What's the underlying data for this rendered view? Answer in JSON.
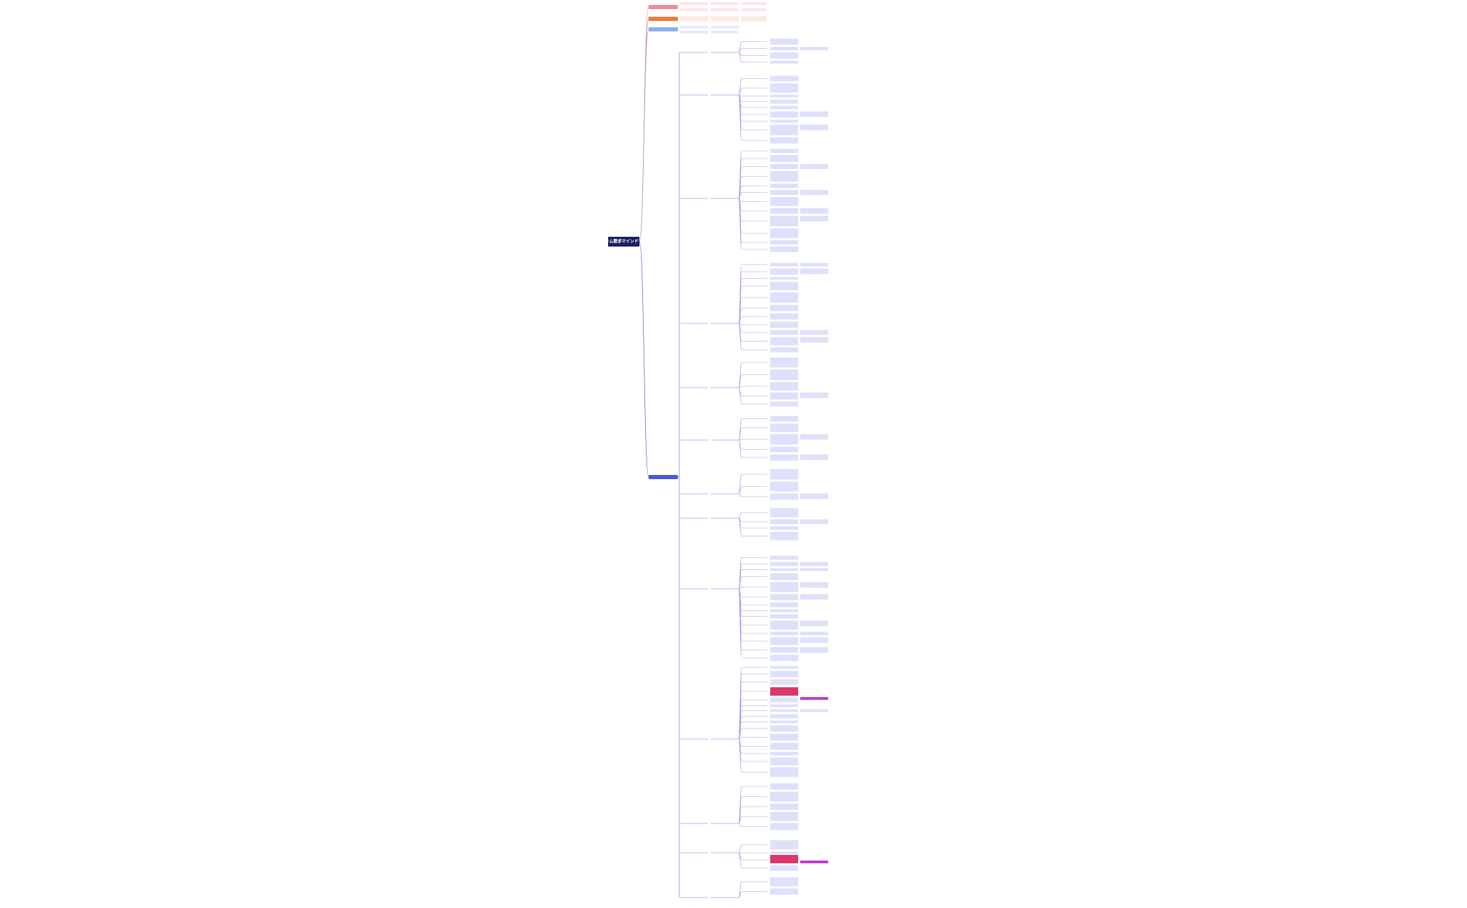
{
  "root": {
    "label": "システム要求マインドマップ"
  }
}
